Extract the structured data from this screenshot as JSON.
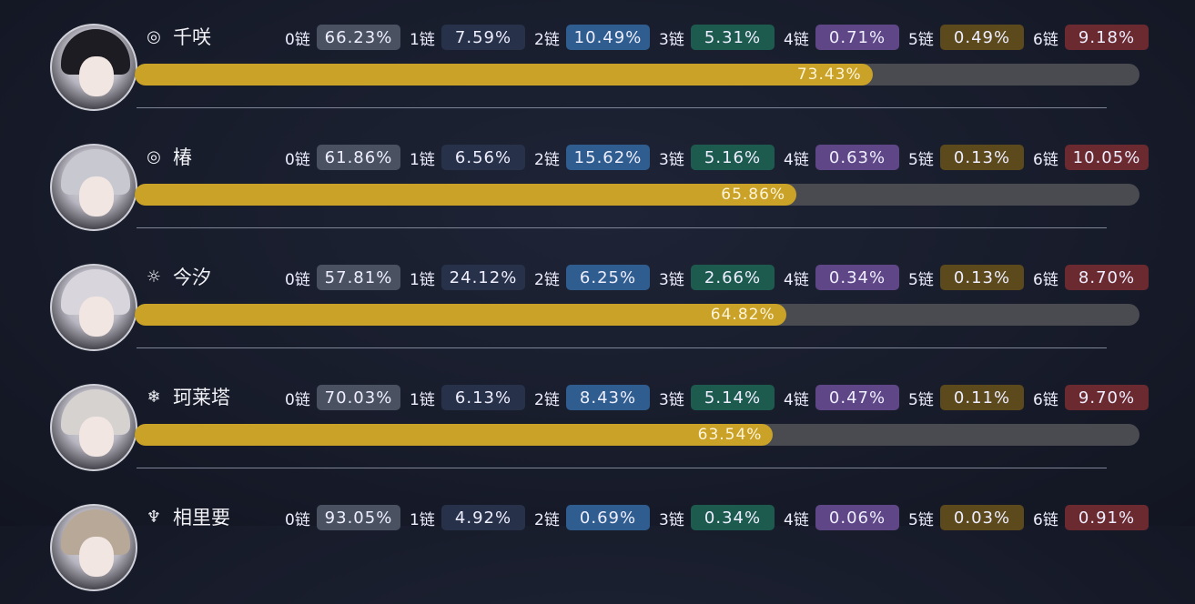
{
  "chain_label_suffix": "链",
  "chain_colors": [
    "#4a5261",
    "#27324a",
    "#2f5d8f",
    "#1e5b4f",
    "#5f4687",
    "#5c4a1d",
    "#6b2a2f"
  ],
  "bar_color": "#c9a227",
  "characters": [
    {
      "name": "千咲",
      "element_icon": "havoc-spiral-icon",
      "glyph": "◎",
      "ownership": "73.43%",
      "ownership_value": 73.43,
      "chains": [
        "66.23%",
        "7.59%",
        "10.49%",
        "5.31%",
        "0.71%",
        "0.49%",
        "9.18%"
      ],
      "hair": "#1c1c22"
    },
    {
      "name": "椿",
      "element_icon": "havoc-spiral-icon",
      "glyph": "◎",
      "ownership": "65.86%",
      "ownership_value": 65.86,
      "chains": [
        "61.86%",
        "6.56%",
        "15.62%",
        "5.16%",
        "0.63%",
        "0.13%",
        "10.05%"
      ],
      "hair": "#c8c8d0"
    },
    {
      "name": "今汐",
      "element_icon": "spectro-sun-icon",
      "glyph": "☼",
      "ownership": "64.82%",
      "ownership_value": 64.82,
      "chains": [
        "57.81%",
        "24.12%",
        "6.25%",
        "2.66%",
        "0.34%",
        "0.13%",
        "8.70%"
      ],
      "hair": "#d8d6dc"
    },
    {
      "name": "珂莱塔",
      "element_icon": "glacio-snowflake-icon",
      "glyph": "❄",
      "ownership": "63.54%",
      "ownership_value": 63.54,
      "chains": [
        "70.03%",
        "6.13%",
        "8.43%",
        "5.14%",
        "0.47%",
        "0.11%",
        "9.70%"
      ],
      "hair": "#d6d2d0"
    },
    {
      "name": "相里要",
      "element_icon": "electro-icon",
      "glyph": "♆",
      "ownership": "",
      "ownership_value": null,
      "chains": [
        "93.05%",
        "4.92%",
        "0.69%",
        "0.34%",
        "0.06%",
        "0.03%",
        "0.91%"
      ],
      "hair": "#b8a898"
    }
  ]
}
